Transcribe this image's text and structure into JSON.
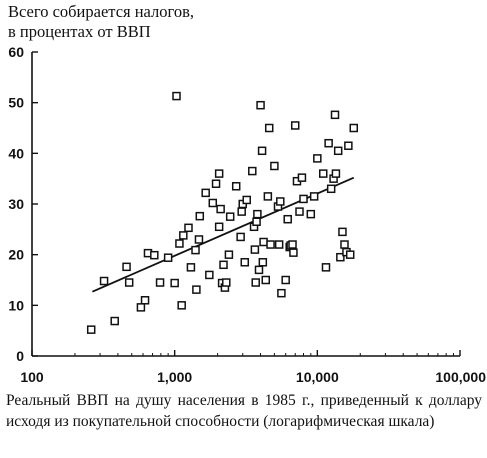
{
  "chart_data": {
    "type": "scatter",
    "title_lines": [
      "Всего собирается налогов,",
      "в процентах от ВВП"
    ],
    "xlabel": "Реальный ВВП на душу населения в 1985 г., приведенный к доллару исходя из покупательной способности (логарифмическая шкала)",
    "x_scale": "log",
    "xlim": [
      100,
      100000
    ],
    "ylim": [
      0,
      60
    ],
    "x_ticks": [
      100,
      1000,
      10000,
      100000
    ],
    "x_tick_labels": [
      "100",
      "1,000",
      "10,000",
      "100,000"
    ],
    "y_ticks": [
      0,
      10,
      20,
      30,
      40,
      50,
      60
    ],
    "y_tick_labels": [
      "0",
      "10",
      "20",
      "30",
      "40",
      "50",
      "60"
    ],
    "grid": false,
    "legend": "none",
    "marker": "open-square",
    "trend_line": {
      "x": [
        265,
        18000
      ],
      "y": [
        12.7,
        35.2
      ]
    },
    "points": [
      {
        "x": 260,
        "y": 5.2
      },
      {
        "x": 320,
        "y": 14.8
      },
      {
        "x": 380,
        "y": 6.9
      },
      {
        "x": 460,
        "y": 17.6
      },
      {
        "x": 480,
        "y": 14.5
      },
      {
        "x": 580,
        "y": 9.6
      },
      {
        "x": 620,
        "y": 11.0
      },
      {
        "x": 650,
        "y": 20.3
      },
      {
        "x": 720,
        "y": 19.9
      },
      {
        "x": 790,
        "y": 14.5
      },
      {
        "x": 900,
        "y": 19.4
      },
      {
        "x": 1000,
        "y": 14.4
      },
      {
        "x": 1030,
        "y": 51.3
      },
      {
        "x": 1080,
        "y": 22.2
      },
      {
        "x": 1120,
        "y": 10.0
      },
      {
        "x": 1150,
        "y": 23.8
      },
      {
        "x": 1250,
        "y": 25.3
      },
      {
        "x": 1300,
        "y": 17.5
      },
      {
        "x": 1400,
        "y": 20.9
      },
      {
        "x": 1420,
        "y": 13.1
      },
      {
        "x": 1480,
        "y": 23.0
      },
      {
        "x": 1500,
        "y": 27.6
      },
      {
        "x": 1650,
        "y": 32.2
      },
      {
        "x": 1750,
        "y": 16.0
      },
      {
        "x": 1850,
        "y": 30.2
      },
      {
        "x": 1950,
        "y": 34.0
      },
      {
        "x": 2050,
        "y": 36.0
      },
      {
        "x": 2050,
        "y": 25.5
      },
      {
        "x": 2100,
        "y": 29.0
      },
      {
        "x": 2150,
        "y": 14.4
      },
      {
        "x": 2200,
        "y": 18.0
      },
      {
        "x": 2250,
        "y": 13.5
      },
      {
        "x": 2300,
        "y": 14.5
      },
      {
        "x": 2400,
        "y": 20.0
      },
      {
        "x": 2450,
        "y": 27.5
      },
      {
        "x": 2700,
        "y": 33.5
      },
      {
        "x": 2900,
        "y": 23.5
      },
      {
        "x": 2950,
        "y": 28.5
      },
      {
        "x": 3000,
        "y": 30.0
      },
      {
        "x": 3100,
        "y": 18.5
      },
      {
        "x": 3200,
        "y": 30.8
      },
      {
        "x": 3500,
        "y": 36.5
      },
      {
        "x": 3600,
        "y": 25.5
      },
      {
        "x": 3650,
        "y": 21.0
      },
      {
        "x": 3700,
        "y": 14.5
      },
      {
        "x": 3750,
        "y": 26.5
      },
      {
        "x": 3800,
        "y": 28.0
      },
      {
        "x": 3900,
        "y": 17.0
      },
      {
        "x": 4000,
        "y": 49.5
      },
      {
        "x": 4100,
        "y": 40.5
      },
      {
        "x": 4150,
        "y": 18.5
      },
      {
        "x": 4200,
        "y": 22.5
      },
      {
        "x": 4350,
        "y": 15.0
      },
      {
        "x": 4500,
        "y": 31.5
      },
      {
        "x": 4600,
        "y": 45.0
      },
      {
        "x": 4700,
        "y": 22.0
      },
      {
        "x": 5000,
        "y": 37.5
      },
      {
        "x": 5300,
        "y": 29.5
      },
      {
        "x": 5400,
        "y": 22.0
      },
      {
        "x": 5500,
        "y": 30.5
      },
      {
        "x": 5600,
        "y": 12.4
      },
      {
        "x": 6000,
        "y": 15.0
      },
      {
        "x": 6200,
        "y": 27.0
      },
      {
        "x": 6400,
        "y": 21.5
      },
      {
        "x": 6500,
        "y": 21.8
      },
      {
        "x": 6700,
        "y": 22.0
      },
      {
        "x": 6800,
        "y": 20.4
      },
      {
        "x": 7000,
        "y": 45.5
      },
      {
        "x": 7200,
        "y": 34.5
      },
      {
        "x": 7500,
        "y": 28.5
      },
      {
        "x": 7800,
        "y": 35.2
      },
      {
        "x": 8000,
        "y": 31.0
      },
      {
        "x": 9000,
        "y": 28.0
      },
      {
        "x": 9500,
        "y": 31.5
      },
      {
        "x": 10000,
        "y": 39.0
      },
      {
        "x": 11000,
        "y": 36.0
      },
      {
        "x": 11500,
        "y": 17.5
      },
      {
        "x": 12000,
        "y": 42.0
      },
      {
        "x": 12500,
        "y": 33.0
      },
      {
        "x": 13000,
        "y": 35.0
      },
      {
        "x": 13300,
        "y": 47.6
      },
      {
        "x": 13500,
        "y": 36.0
      },
      {
        "x": 14000,
        "y": 40.5
      },
      {
        "x": 14500,
        "y": 19.5
      },
      {
        "x": 15000,
        "y": 24.5
      },
      {
        "x": 15500,
        "y": 22.0
      },
      {
        "x": 16000,
        "y": 20.5
      },
      {
        "x": 16500,
        "y": 41.5
      },
      {
        "x": 17000,
        "y": 20.0
      },
      {
        "x": 18000,
        "y": 45.0
      }
    ]
  }
}
